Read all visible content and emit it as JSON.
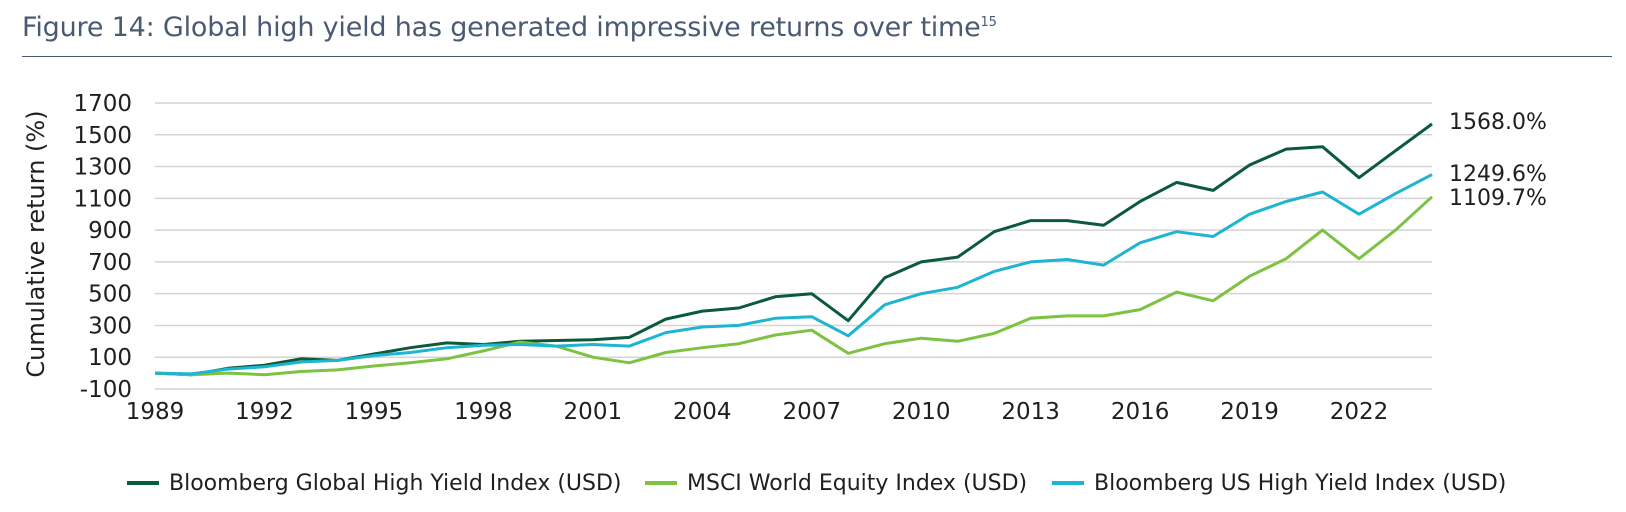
{
  "title": "Figure 14: Global high yield has generated impressive returns over time",
  "title_superscript": "15",
  "chart_data": {
    "type": "line",
    "ylabel": "Cumulative return (%)",
    "xlabel": "",
    "ylim": [
      -100,
      1700
    ],
    "yticks": [
      -100,
      100,
      300,
      500,
      700,
      900,
      1100,
      1300,
      1500,
      1700
    ],
    "xlim": [
      1989,
      2024
    ],
    "xticks": [
      1989,
      1992,
      1995,
      1998,
      2001,
      2004,
      2007,
      2010,
      2013,
      2016,
      2019,
      2022
    ],
    "grid": true,
    "legend_position": "bottom",
    "x": [
      1989,
      1990,
      1991,
      1992,
      1993,
      1994,
      1995,
      1996,
      1997,
      1998,
      1999,
      2000,
      2001,
      2002,
      2003,
      2004,
      2005,
      2006,
      2007,
      2008,
      2009,
      2010,
      2011,
      2012,
      2013,
      2014,
      2015,
      2016,
      2017,
      2018,
      2019,
      2020,
      2021,
      2022,
      2023,
      2024
    ],
    "series": [
      {
        "name": "Bloomberg Global High Yield Index (USD)",
        "color": "#0b5a3a",
        "end_label": "1568.0%",
        "values": [
          0,
          -10,
          30,
          50,
          90,
          80,
          120,
          160,
          190,
          180,
          200,
          205,
          210,
          225,
          340,
          390,
          410,
          480,
          500,
          330,
          600,
          700,
          730,
          890,
          960,
          960,
          930,
          1080,
          1200,
          1150,
          1310,
          1410,
          1425,
          1230,
          1400,
          1568
        ]
      },
      {
        "name": "MSCI World Equity Index (USD)",
        "color": "#7dc242",
        "end_label": "1109.7%",
        "values": [
          0,
          -10,
          0,
          -10,
          10,
          20,
          45,
          65,
          90,
          140,
          195,
          170,
          100,
          65,
          130,
          160,
          185,
          240,
          270,
          125,
          185,
          220,
          200,
          250,
          345,
          360,
          360,
          400,
          510,
          455,
          610,
          720,
          900,
          720,
          900,
          1109.7
        ]
      },
      {
        "name": "Bloomberg US High Yield Index (USD)",
        "color": "#1eb4d2",
        "end_label": "1249.6%",
        "values": [
          0,
          -5,
          25,
          40,
          70,
          80,
          110,
          130,
          160,
          175,
          180,
          170,
          180,
          170,
          255,
          290,
          300,
          345,
          355,
          235,
          430,
          500,
          540,
          640,
          700,
          715,
          680,
          820,
          890,
          860,
          1000,
          1080,
          1140,
          1000,
          1130,
          1249.6
        ]
      }
    ]
  }
}
